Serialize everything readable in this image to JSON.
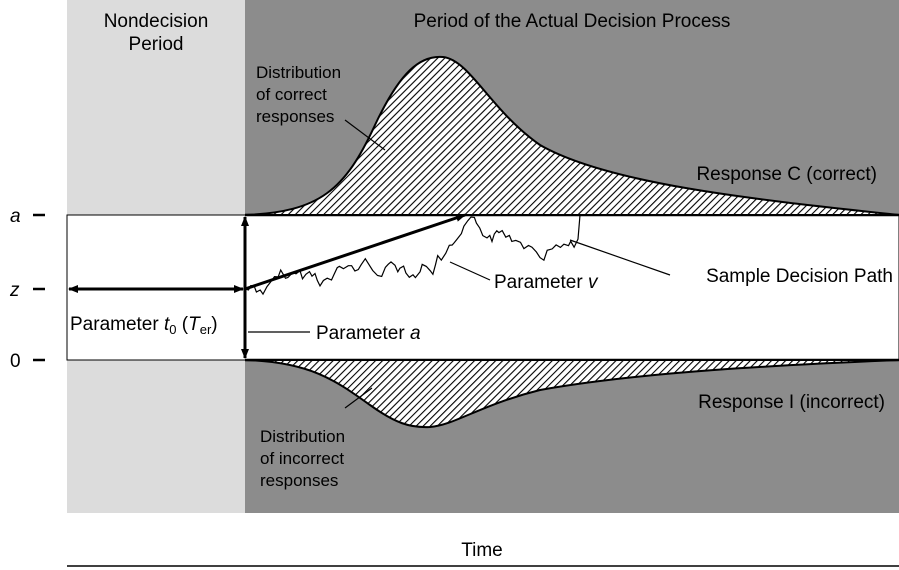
{
  "header": {
    "left": [
      "Nondecision",
      "Period"
    ],
    "right": "Period of the Actual Decision Process"
  },
  "axis": {
    "top": "a",
    "middle": "z",
    "bottom": "0"
  },
  "labels": {
    "correct_distribution": [
      "Distribution",
      "of correct",
      "responses"
    ],
    "response_c": "Response C (correct)",
    "sample_path": "Sample Decision Path",
    "parameter_v": {
      "text": "Parameter ",
      "symbol": "v"
    },
    "parameter_t0": {
      "text": "Parameter ",
      "symbol": "t",
      "sub": "0",
      "open": " (",
      "symbol2": "T",
      "sub2": "er",
      "close": ")"
    },
    "parameter_a": {
      "text": "Parameter ",
      "symbol": "a"
    },
    "response_i": "Response I (incorrect)",
    "incorrect_distribution": [
      "Distribution",
      "of incorrect",
      "responses"
    ]
  },
  "footer": "Time"
}
